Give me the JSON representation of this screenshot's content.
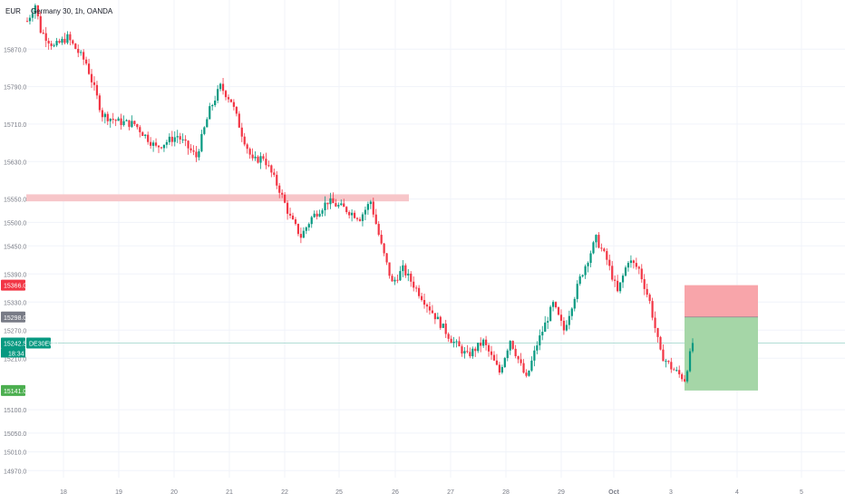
{
  "header": {
    "currency": "EUR",
    "symbol_title": "Germany 30, 1h, OANDA"
  },
  "price_axis": {
    "labels": [
      "15870.0",
      "15790.0",
      "15710.0",
      "15630.0",
      "15550.0",
      "15500.0",
      "15450.0",
      "15390.0",
      "15330.0",
      "15270.0",
      "15210.0",
      "15100.0",
      "15050.0",
      "15010.0",
      "14970.0"
    ]
  },
  "time_axis": {
    "labels": [
      "18",
      "19",
      "20",
      "21",
      "22",
      "25",
      "26",
      "27",
      "28",
      "29",
      "Oct",
      "3",
      "4",
      "5"
    ]
  },
  "badges": {
    "stop": {
      "text": "15366.0",
      "color": "#f23645"
    },
    "entry": {
      "text": "15298.0",
      "color": "#787b86"
    },
    "current": {
      "text": "15242.5",
      "color": "#089981"
    },
    "countdown": {
      "text": "18:34",
      "color": "#089981"
    },
    "symbol_tag": {
      "text": "DE30EUR",
      "color": "#089981"
    },
    "target": {
      "text": "15141.0",
      "color": "#4caf50"
    }
  },
  "colors": {
    "up": "#089981",
    "down": "#f23645",
    "zone": "#f7c6c9",
    "stop_fill": "#f8a5aa",
    "target_fill": "#a5d6a7",
    "grid": "#f0f3fa"
  },
  "chart_data": {
    "type": "candlestick",
    "title": "Germany 30, 1h, OANDA",
    "ylim": [
      14955,
      15975
    ],
    "resistance_zone": [
      15545,
      15560
    ],
    "current_price": 15242.5,
    "position": {
      "type": "long",
      "stop": 15366.0,
      "entry": 15298.0,
      "target": 15141.0
    },
    "waypoints": [
      {
        "x": 0,
        "p": 15930
      },
      {
        "x": 3,
        "p": 15965
      },
      {
        "x": 5,
        "p": 15910
      },
      {
        "x": 10,
        "p": 15875
      },
      {
        "x": 15,
        "p": 15895
      },
      {
        "x": 22,
        "p": 15840
      },
      {
        "x": 28,
        "p": 15730
      },
      {
        "x": 34,
        "p": 15715
      },
      {
        "x": 40,
        "p": 15710
      },
      {
        "x": 48,
        "p": 15660
      },
      {
        "x": 56,
        "p": 15685
      },
      {
        "x": 63,
        "p": 15640
      },
      {
        "x": 68,
        "p": 15740
      },
      {
        "x": 72,
        "p": 15790
      },
      {
        "x": 76,
        "p": 15760
      },
      {
        "x": 80,
        "p": 15690
      },
      {
        "x": 84,
        "p": 15630
      },
      {
        "x": 88,
        "p": 15640
      },
      {
        "x": 94,
        "p": 15570
      },
      {
        "x": 98,
        "p": 15510
      },
      {
        "x": 102,
        "p": 15470
      },
      {
        "x": 106,
        "p": 15510
      },
      {
        "x": 112,
        "p": 15545
      },
      {
        "x": 118,
        "p": 15530
      },
      {
        "x": 124,
        "p": 15510
      },
      {
        "x": 128,
        "p": 15545
      },
      {
        "x": 132,
        "p": 15450
      },
      {
        "x": 136,
        "p": 15370
      },
      {
        "x": 140,
        "p": 15400
      },
      {
        "x": 146,
        "p": 15350
      },
      {
        "x": 152,
        "p": 15300
      },
      {
        "x": 158,
        "p": 15250
      },
      {
        "x": 164,
        "p": 15215
      },
      {
        "x": 170,
        "p": 15245
      },
      {
        "x": 176,
        "p": 15180
      },
      {
        "x": 180,
        "p": 15250
      },
      {
        "x": 186,
        "p": 15165
      },
      {
        "x": 190,
        "p": 15240
      },
      {
        "x": 196,
        "p": 15325
      },
      {
        "x": 200,
        "p": 15270
      },
      {
        "x": 206,
        "p": 15380
      },
      {
        "x": 212,
        "p": 15465
      },
      {
        "x": 216,
        "p": 15420
      },
      {
        "x": 220,
        "p": 15350
      },
      {
        "x": 224,
        "p": 15420
      },
      {
        "x": 228,
        "p": 15400
      },
      {
        "x": 232,
        "p": 15330
      },
      {
        "x": 236,
        "p": 15220
      },
      {
        "x": 240,
        "p": 15190
      },
      {
        "x": 245,
        "p": 15165
      },
      {
        "x": 248,
        "p": 15242.5
      }
    ]
  }
}
